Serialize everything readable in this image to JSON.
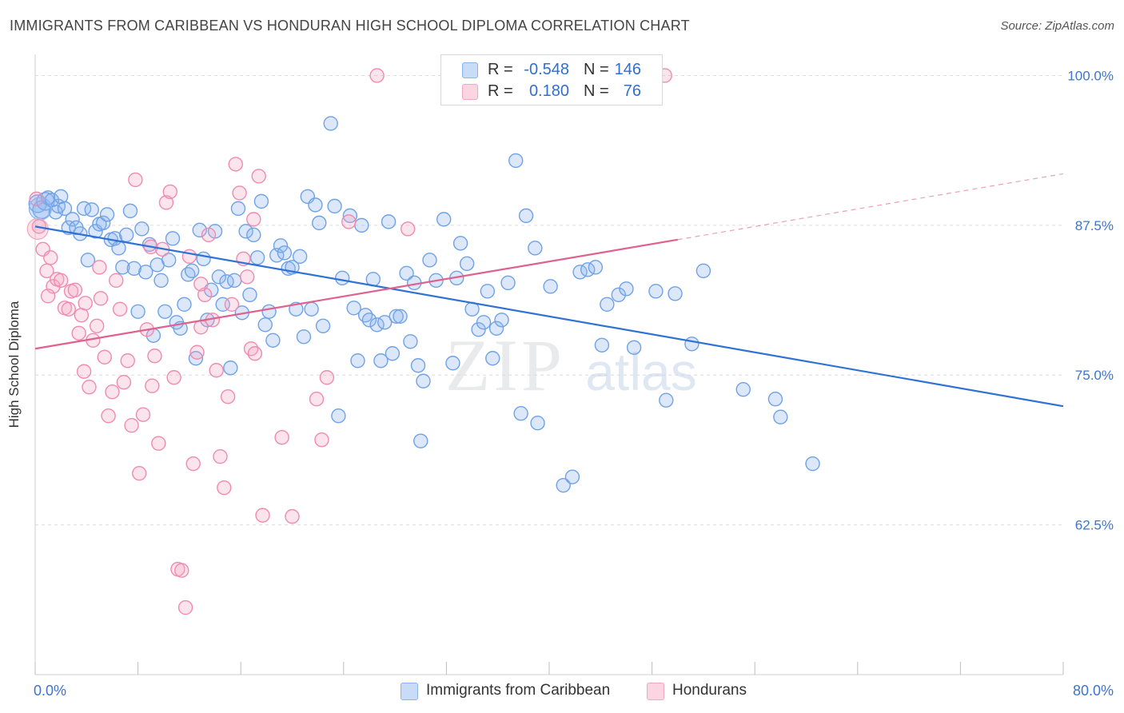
{
  "title": "IMMIGRANTS FROM CARIBBEAN VS HONDURAN HIGH SCHOOL DIPLOMA CORRELATION CHART",
  "source": "Source: ZipAtlas.com",
  "watermark": {
    "zip": "ZIP",
    "atlas": "atlas"
  },
  "legend_top": {
    "rows": [
      {
        "r_label": "R =",
        "r_value": "-0.548",
        "n_label": "N =",
        "n_value": "146",
        "color": "#8ab4f0"
      },
      {
        "r_label": "R =",
        "r_value": "0.180",
        "n_label": "N =",
        "n_value": "76",
        "color": "#f4a6c0"
      }
    ]
  },
  "legend_bottom": {
    "items": [
      {
        "label": "Immigrants from Caribbean",
        "color": "#8ab4f0"
      },
      {
        "label": "Hondurans",
        "color": "#f4a6c0"
      }
    ]
  },
  "chart_data": {
    "type": "scatter",
    "title": "IMMIGRANTS FROM CARIBBEAN VS HONDURAN HIGH SCHOOL DIPLOMA CORRELATION CHART",
    "xlabel": "",
    "ylabel": "High School Diploma",
    "xlim": [
      0,
      80
    ],
    "ylim": [
      50,
      101.5
    ],
    "x_tick_labels": [
      {
        "value": 0,
        "label": "0.0%"
      },
      {
        "value": 80,
        "label": "80.0%"
      }
    ],
    "y_tick_labels": [
      {
        "value": 100,
        "label": "100.0%"
      },
      {
        "value": 87.5,
        "label": "87.5%"
      },
      {
        "value": 75,
        "label": "75.0%"
      },
      {
        "value": 62.5,
        "label": "62.5%"
      }
    ],
    "grid": "horizontal dashed",
    "legend_position": "top-center and bottom",
    "series": [
      {
        "name": "Immigrants from Caribbean",
        "color": "#6fa2e6",
        "trend": {
          "x": [
            0,
            80
          ],
          "y": [
            87.4,
            72.4
          ],
          "color": "#2f72d4"
        },
        "points": [
          [
            0.2,
            89.3
          ],
          [
            0.5,
            88.8
          ],
          [
            0.8,
            89.5
          ],
          [
            1.0,
            89.8
          ],
          [
            1.3,
            89.6
          ],
          [
            1.6,
            88.6
          ],
          [
            1.8,
            89.1
          ],
          [
            2.0,
            89.9
          ],
          [
            2.3,
            88.9
          ],
          [
            2.6,
            87.3
          ],
          [
            2.9,
            88.0
          ],
          [
            3.2,
            87.3
          ],
          [
            3.5,
            86.8
          ],
          [
            3.8,
            88.9
          ],
          [
            4.1,
            84.6
          ],
          [
            4.4,
            88.8
          ],
          [
            4.7,
            87.0
          ],
          [
            5.0,
            87.6
          ],
          [
            5.3,
            87.7
          ],
          [
            5.6,
            88.4
          ],
          [
            5.9,
            86.3
          ],
          [
            6.2,
            86.4
          ],
          [
            6.5,
            85.6
          ],
          [
            6.8,
            84.0
          ],
          [
            7.1,
            86.7
          ],
          [
            7.4,
            88.7
          ],
          [
            7.7,
            83.9
          ],
          [
            8.0,
            80.3
          ],
          [
            8.3,
            87.2
          ],
          [
            8.6,
            83.6
          ],
          [
            8.9,
            85.9
          ],
          [
            9.2,
            78.3
          ],
          [
            9.5,
            84.2
          ],
          [
            9.8,
            82.9
          ],
          [
            10.1,
            80.3
          ],
          [
            10.4,
            84.6
          ],
          [
            10.7,
            86.4
          ],
          [
            11.0,
            79.4
          ],
          [
            11.3,
            78.9
          ],
          [
            11.6,
            80.9
          ],
          [
            11.9,
            83.4
          ],
          [
            12.2,
            83.7
          ],
          [
            12.5,
            76.4
          ],
          [
            12.8,
            87.1
          ],
          [
            13.1,
            84.7
          ],
          [
            13.4,
            79.6
          ],
          [
            13.7,
            82.1
          ],
          [
            14.0,
            87.0
          ],
          [
            14.3,
            83.2
          ],
          [
            14.6,
            80.9
          ],
          [
            14.9,
            82.8
          ],
          [
            15.2,
            75.6
          ],
          [
            15.5,
            82.9
          ],
          [
            15.8,
            88.9
          ],
          [
            16.1,
            80.2
          ],
          [
            16.4,
            87.0
          ],
          [
            16.7,
            81.7
          ],
          [
            17.0,
            86.7
          ],
          [
            17.3,
            84.8
          ],
          [
            17.6,
            89.5
          ],
          [
            17.9,
            79.2
          ],
          [
            18.2,
            80.3
          ],
          [
            18.5,
            77.9
          ],
          [
            18.8,
            85.0
          ],
          [
            19.1,
            85.8
          ],
          [
            19.4,
            85.2
          ],
          [
            19.7,
            83.9
          ],
          [
            20.0,
            84.0
          ],
          [
            20.3,
            80.5
          ],
          [
            20.6,
            84.9
          ],
          [
            20.9,
            78.2
          ],
          [
            21.2,
            89.9
          ],
          [
            21.5,
            80.5
          ],
          [
            21.8,
            89.2
          ],
          [
            22.1,
            87.7
          ],
          [
            22.4,
            79.1
          ],
          [
            23.0,
            96.0
          ],
          [
            23.3,
            89.1
          ],
          [
            23.6,
            71.6
          ],
          [
            23.9,
            83.1
          ],
          [
            24.5,
            88.3
          ],
          [
            24.8,
            80.6
          ],
          [
            25.1,
            76.2
          ],
          [
            25.4,
            87.5
          ],
          [
            25.7,
            80.0
          ],
          [
            26.0,
            79.6
          ],
          [
            26.3,
            83.0
          ],
          [
            26.6,
            79.2
          ],
          [
            26.9,
            76.2
          ],
          [
            27.2,
            79.4
          ],
          [
            27.5,
            87.8
          ],
          [
            27.8,
            76.8
          ],
          [
            28.1,
            79.9
          ],
          [
            28.4,
            79.9
          ],
          [
            28.9,
            83.5
          ],
          [
            29.2,
            77.8
          ],
          [
            29.5,
            82.7
          ],
          [
            29.8,
            75.8
          ],
          [
            30.2,
            74.5
          ],
          [
            30.7,
            84.6
          ],
          [
            31.2,
            82.9
          ],
          [
            31.8,
            88.0
          ],
          [
            32.5,
            76.0
          ],
          [
            32.8,
            83.1
          ],
          [
            33.1,
            86.0
          ],
          [
            33.6,
            84.3
          ],
          [
            34.0,
            80.5
          ],
          [
            34.5,
            78.8
          ],
          [
            34.9,
            79.4
          ],
          [
            35.2,
            82.0
          ],
          [
            35.6,
            76.4
          ],
          [
            35.9,
            78.9
          ],
          [
            36.3,
            79.6
          ],
          [
            36.8,
            82.7
          ],
          [
            37.4,
            92.9
          ],
          [
            37.8,
            71.8
          ],
          [
            38.2,
            88.3
          ],
          [
            38.9,
            85.6
          ],
          [
            39.1,
            71.0
          ],
          [
            40.1,
            82.4
          ],
          [
            41.1,
            65.8
          ],
          [
            41.8,
            66.5
          ],
          [
            42.4,
            83.6
          ],
          [
            43.0,
            83.8
          ],
          [
            43.6,
            84.0
          ],
          [
            44.1,
            77.5
          ],
          [
            44.5,
            80.9
          ],
          [
            45.4,
            81.7
          ],
          [
            46.0,
            82.2
          ],
          [
            46.6,
            77.3
          ],
          [
            48.3,
            82.0
          ],
          [
            49.1,
            72.9
          ],
          [
            49.8,
            81.8
          ],
          [
            51.1,
            77.6
          ],
          [
            52.0,
            83.7
          ],
          [
            55.1,
            73.8
          ],
          [
            57.6,
            73.0
          ],
          [
            58.0,
            71.5
          ],
          [
            60.5,
            67.6
          ],
          [
            30.0,
            69.5
          ]
        ]
      },
      {
        "name": "Hondurans",
        "color": "#f08bb0",
        "trend": {
          "x": [
            0,
            50
          ],
          "y": [
            77.2,
            86.3
          ],
          "color": "#e0608e"
        },
        "trend_extension": {
          "x": [
            50,
            80
          ],
          "y": [
            86.3,
            91.8
          ]
        },
        "points": [
          [
            0.1,
            89.7
          ],
          [
            0.3,
            87.4
          ],
          [
            0.6,
            85.5
          ],
          [
            0.9,
            83.7
          ],
          [
            1.2,
            84.8
          ],
          [
            1.4,
            82.4
          ],
          [
            1.7,
            83.0
          ],
          [
            2.0,
            82.9
          ],
          [
            2.3,
            80.6
          ],
          [
            2.6,
            80.5
          ],
          [
            2.8,
            82.0
          ],
          [
            3.1,
            82.1
          ],
          [
            3.4,
            78.5
          ],
          [
            3.6,
            80.0
          ],
          [
            3.9,
            81.0
          ],
          [
            4.2,
            74.0
          ],
          [
            4.5,
            77.9
          ],
          [
            4.8,
            79.1
          ],
          [
            5.1,
            81.4
          ],
          [
            5.4,
            76.5
          ],
          [
            5.7,
            71.6
          ],
          [
            6.0,
            73.6
          ],
          [
            6.3,
            82.9
          ],
          [
            6.6,
            80.5
          ],
          [
            6.9,
            74.4
          ],
          [
            7.2,
            76.2
          ],
          [
            7.5,
            70.8
          ],
          [
            7.8,
            91.3
          ],
          [
            8.1,
            66.8
          ],
          [
            8.4,
            71.7
          ],
          [
            8.7,
            78.8
          ],
          [
            9.0,
            85.7
          ],
          [
            9.3,
            76.6
          ],
          [
            9.6,
            69.3
          ],
          [
            9.9,
            85.5
          ],
          [
            10.2,
            89.4
          ],
          [
            10.5,
            90.3
          ],
          [
            10.8,
            74.8
          ],
          [
            11.1,
            58.8
          ],
          [
            11.4,
            58.7
          ],
          [
            11.7,
            55.6
          ],
          [
            12.0,
            84.9
          ],
          [
            12.3,
            67.6
          ],
          [
            12.6,
            76.9
          ],
          [
            12.9,
            79.0
          ],
          [
            13.2,
            81.7
          ],
          [
            13.5,
            86.7
          ],
          [
            13.8,
            79.6
          ],
          [
            14.1,
            75.4
          ],
          [
            14.4,
            68.2
          ],
          [
            14.7,
            65.6
          ],
          [
            15.0,
            73.2
          ],
          [
            15.3,
            80.9
          ],
          [
            15.6,
            92.6
          ],
          [
            15.9,
            90.2
          ],
          [
            16.2,
            84.7
          ],
          [
            16.5,
            83.2
          ],
          [
            16.8,
            77.2
          ],
          [
            17.1,
            76.8
          ],
          [
            17.4,
            91.6
          ],
          [
            17.7,
            63.3
          ],
          [
            19.2,
            69.8
          ],
          [
            20.0,
            63.2
          ],
          [
            21.9,
            73.0
          ],
          [
            22.3,
            69.6
          ],
          [
            22.7,
            74.8
          ],
          [
            24.4,
            87.8
          ],
          [
            26.6,
            100.0
          ],
          [
            29.0,
            87.2
          ],
          [
            49.0,
            100.0
          ],
          [
            1.0,
            81.6
          ],
          [
            3.8,
            75.3
          ],
          [
            9.1,
            74.1
          ],
          [
            12.9,
            82.6
          ],
          [
            17.0,
            88.0
          ],
          [
            5.0,
            84.0
          ]
        ]
      }
    ]
  }
}
